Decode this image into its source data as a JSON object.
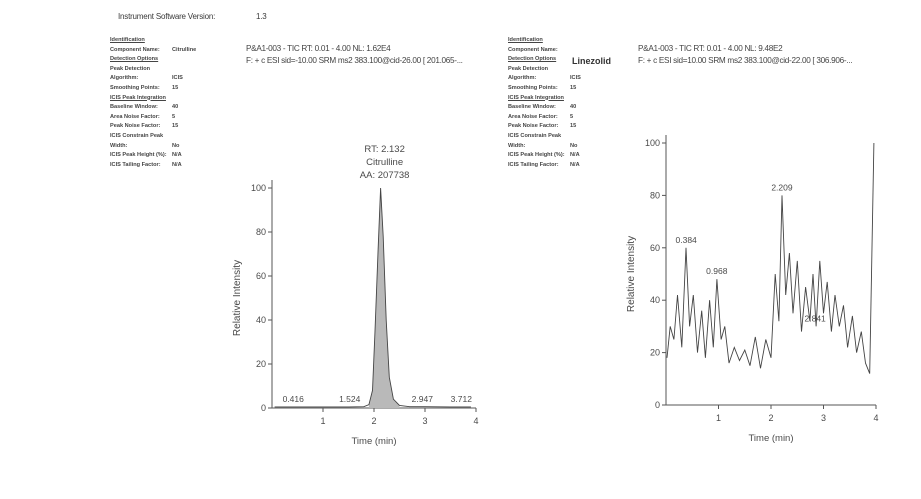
{
  "header": {
    "software_label": "Instrument Software Version:",
    "software_value": "1.3"
  },
  "left_panel": [
    {
      "k": "Identification",
      "v": "",
      "u": true
    },
    {
      "k": "Component Name:",
      "v": "Citrulline",
      "u": false
    },
    {
      "k": "Detection Options",
      "v": "",
      "u": true
    },
    {
      "k": "Peak Detection",
      "v": "",
      "u": false
    },
    {
      "k": "Algorithm:",
      "v": "ICIS",
      "u": false
    },
    {
      "k": "Smoothing Points:",
      "v": "15",
      "u": false
    },
    {
      "k": "ICIS Peak Integration",
      "v": "",
      "u": true
    },
    {
      "k": "Baseline Window:",
      "v": "40",
      "u": false
    },
    {
      "k": "Area Noise Factor:",
      "v": "5",
      "u": false
    },
    {
      "k": "Peak Noise Factor:",
      "v": "15",
      "u": false
    },
    {
      "k": "ICIS Constrain Peak",
      "v": "",
      "u": false
    },
    {
      "k": "Width:",
      "v": "No",
      "u": false
    },
    {
      "k": "ICIS Peak Height (%):",
      "v": "N/A",
      "u": false
    },
    {
      "k": "ICIS Tailing Factor:",
      "v": "N/A",
      "u": false
    }
  ],
  "right_panel": [
    {
      "k": "Identification",
      "v": "",
      "u": true
    },
    {
      "k": "Component Name:",
      "v": "",
      "u": false
    },
    {
      "k": "Detection Options",
      "v": "",
      "u": true
    },
    {
      "k": "Peak Detection",
      "v": "",
      "u": false
    },
    {
      "k": "Algorithm:",
      "v": "ICIS",
      "u": false
    },
    {
      "k": "Smoothing Points:",
      "v": "15",
      "u": false
    },
    {
      "k": "ICIS Peak Integration",
      "v": "",
      "u": true
    },
    {
      "k": "Baseline Window:",
      "v": "40",
      "u": false
    },
    {
      "k": "Area Noise Factor:",
      "v": "5",
      "u": false
    },
    {
      "k": "Peak Noise Factor:",
      "v": "15",
      "u": false
    },
    {
      "k": "ICIS Constrain Peak",
      "v": "",
      "u": false
    },
    {
      "k": "Width:",
      "v": "No",
      "u": false
    },
    {
      "k": "ICIS Peak Height (%):",
      "v": "N/A",
      "u": false
    },
    {
      "k": "ICIS Tailing Factor:",
      "v": "N/A",
      "u": false
    }
  ],
  "right_component": "Linezolid",
  "chart_data": [
    {
      "type": "line",
      "header_line1": "P&A1-003 - TIC RT: 0.01 - 4.00  NL: 1.62E4",
      "header_line2": "F: + c ESI sid=-10.00  SRM ms2  383.100@cid-26.00 [ 201.065-...",
      "ylabel": "Relative Intensity",
      "xlabel": "Time (min)",
      "xlim": [
        0,
        4
      ],
      "ylim": [
        0,
        100
      ],
      "x_ticks": [
        "1",
        "2",
        "3",
        "4"
      ],
      "y_ticks": [
        "0",
        "20",
        "40",
        "60",
        "80",
        "100"
      ],
      "x": [
        0.05,
        0.4,
        1.0,
        1.5,
        1.8,
        1.9,
        1.97,
        2.02,
        2.08,
        2.13,
        2.18,
        2.24,
        2.3,
        2.38,
        2.5,
        2.7,
        3.0,
        3.5,
        3.9
      ],
      "y": [
        0.5,
        0.5,
        0.5,
        0.5,
        0.6,
        1.5,
        8,
        35,
        72,
        100,
        78,
        40,
        14,
        4,
        1.2,
        0.6,
        0.6,
        0.5,
        0.5
      ],
      "peak_annotation": [
        "RT: 2.132",
        "Citrulline",
        "AA: 207738"
      ],
      "peak_labels": [
        {
          "x": 0.416,
          "text": "0.416"
        },
        {
          "x": 1.524,
          "text": "1.524"
        },
        {
          "x": 2.947,
          "text": "2.947"
        },
        {
          "x": 3.712,
          "text": "3.712"
        }
      ]
    },
    {
      "type": "line",
      "header_line1": "P&A1-003 - TIC RT: 0.01 - 4.00  NL: 9.48E2",
      "header_line2": "F: + c ESI sid=10.00  SRM ms2  383.100@cid-22.00 [ 306.906-...",
      "ylabel": "Relative Intensity",
      "xlabel": "Time (min)",
      "xlim": [
        0,
        4
      ],
      "ylim": [
        0,
        100
      ],
      "x_ticks": [
        "1",
        "2",
        "3",
        "4"
      ],
      "y_ticks": [
        "0",
        "20",
        "40",
        "60",
        "80",
        "100"
      ],
      "x": [
        0.02,
        0.08,
        0.15,
        0.22,
        0.3,
        0.38,
        0.45,
        0.52,
        0.6,
        0.68,
        0.75,
        0.83,
        0.9,
        0.97,
        1.05,
        1.12,
        1.2,
        1.3,
        1.4,
        1.5,
        1.6,
        1.7,
        1.8,
        1.9,
        2.0,
        2.08,
        2.15,
        2.21,
        2.28,
        2.35,
        2.42,
        2.5,
        2.58,
        2.66,
        2.74,
        2.8,
        2.86,
        2.93,
        3.0,
        3.07,
        3.15,
        3.22,
        3.3,
        3.38,
        3.46,
        3.55,
        3.63,
        3.72,
        3.8,
        3.88,
        3.96
      ],
      "y": [
        18,
        30,
        25,
        42,
        22,
        60,
        30,
        42,
        20,
        36,
        18,
        40,
        22,
        48,
        25,
        30,
        16,
        22,
        17,
        21,
        15,
        26,
        14,
        25,
        18,
        50,
        32,
        80,
        42,
        58,
        35,
        55,
        28,
        45,
        32,
        50,
        30,
        55,
        35,
        47,
        28,
        42,
        30,
        38,
        22,
        34,
        20,
        28,
        16,
        12,
        100
      ],
      "peak_labels": [
        {
          "x": 0.384,
          "text": "0.384"
        },
        {
          "x": 0.968,
          "text": "0.968"
        },
        {
          "x": 2.209,
          "text": "2.209"
        },
        {
          "x": 2.841,
          "text": "2.841"
        }
      ]
    }
  ]
}
